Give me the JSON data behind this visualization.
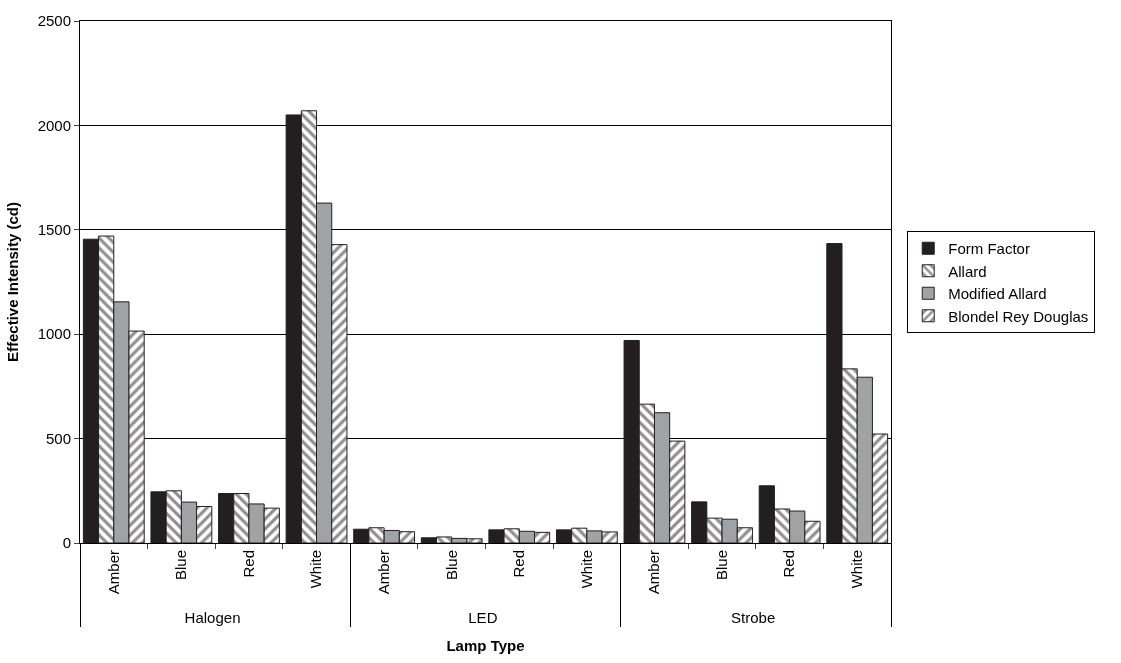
{
  "chart_data": {
    "type": "bar",
    "xlabel": "Lamp Type",
    "ylabel": "Effective Intensity (cd)",
    "categories": [
      "Amber",
      "Blue",
      "Red",
      "White",
      "Amber",
      "Blue",
      "Red",
      "White",
      "Amber",
      "Blue",
      "Red",
      "White"
    ],
    "annotations": [
      "Halogen",
      "LED",
      "Strobe"
    ],
    "series": [
      {
        "name": "Form Factor",
        "color": "#231f20",
        "values": [
          1455,
          245,
          237,
          2050,
          66,
          25,
          63,
          63,
          970,
          197,
          274,
          1434
        ]
      },
      {
        "name": "Allard",
        "color": "#231f20",
        "values": [
          1470,
          250,
          237,
          2070,
          73,
          29,
          68,
          71,
          665,
          119,
          163,
          834
        ]
      },
      {
        "name": "Modified Allard",
        "color": "#a0a3a6",
        "values": [
          1155,
          196,
          187,
          1628,
          60,
          22,
          56,
          58,
          624,
          114,
          153,
          794
        ]
      },
      {
        "name": "Blondel Rey Douglas",
        "color": "#231f20",
        "values": [
          1015,
          175,
          167,
          1429,
          54,
          20,
          51,
          53,
          488,
          73,
          104,
          522
        ]
      }
    ],
    "ylim": [
      0,
      2500
    ],
    "yticks": [
      0,
      500,
      1000,
      1500,
      2000,
      2500
    ],
    "grid": "y",
    "legend": "right"
  }
}
